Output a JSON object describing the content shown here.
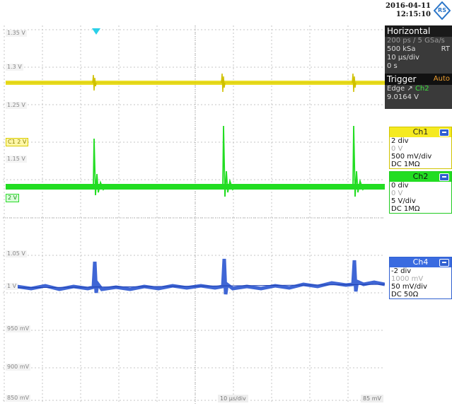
{
  "header": {
    "date": "2016-04-11",
    "time": "12:15:10"
  },
  "y_axis_labels": [
    "1.35 V",
    "1.3 V",
    "1.25 V",
    "C1 2 V",
    "1.15 V",
    "2 V",
    "1.05 V",
    "1 V",
    "950 mV",
    "900 mV",
    "850 mV"
  ],
  "x_scale_label": "10 µs/div",
  "bottom_right_marker": "85 mV",
  "horizontal": {
    "title": "Horizontal",
    "sample_rate": "200 ps / 5 GSa/s",
    "record": "500 kSa",
    "mode": "RT",
    "timebase": "10 µs/div",
    "position": "0 s"
  },
  "trigger": {
    "title": "Trigger",
    "mode": "Auto",
    "type": "Edge",
    "source": "Ch2",
    "level": "9.0164 V"
  },
  "channels": [
    {
      "name": "Ch1",
      "offset_div": "2 div",
      "offset": "0 V",
      "scale": "500 mV/div",
      "coupling": "DC 1MΩ",
      "color": "#f0e000"
    },
    {
      "name": "Ch2",
      "offset_div": "0 div",
      "offset": "0 V",
      "scale": "5 V/div",
      "coupling": "DC 1MΩ",
      "color": "#20dd20"
    },
    {
      "name": "Ch4",
      "offset_div": "-2 div",
      "offset": "1000 mV",
      "scale": "50 mV/div",
      "coupling": "DC 50Ω",
      "color": "#3a6be0"
    }
  ],
  "colors": {
    "ch1": "#e6d800",
    "ch2": "#22dd22",
    "ch4": "#2a55d0",
    "trigger_marker": "#2ad0e8",
    "grid": "#b8b8b8"
  }
}
